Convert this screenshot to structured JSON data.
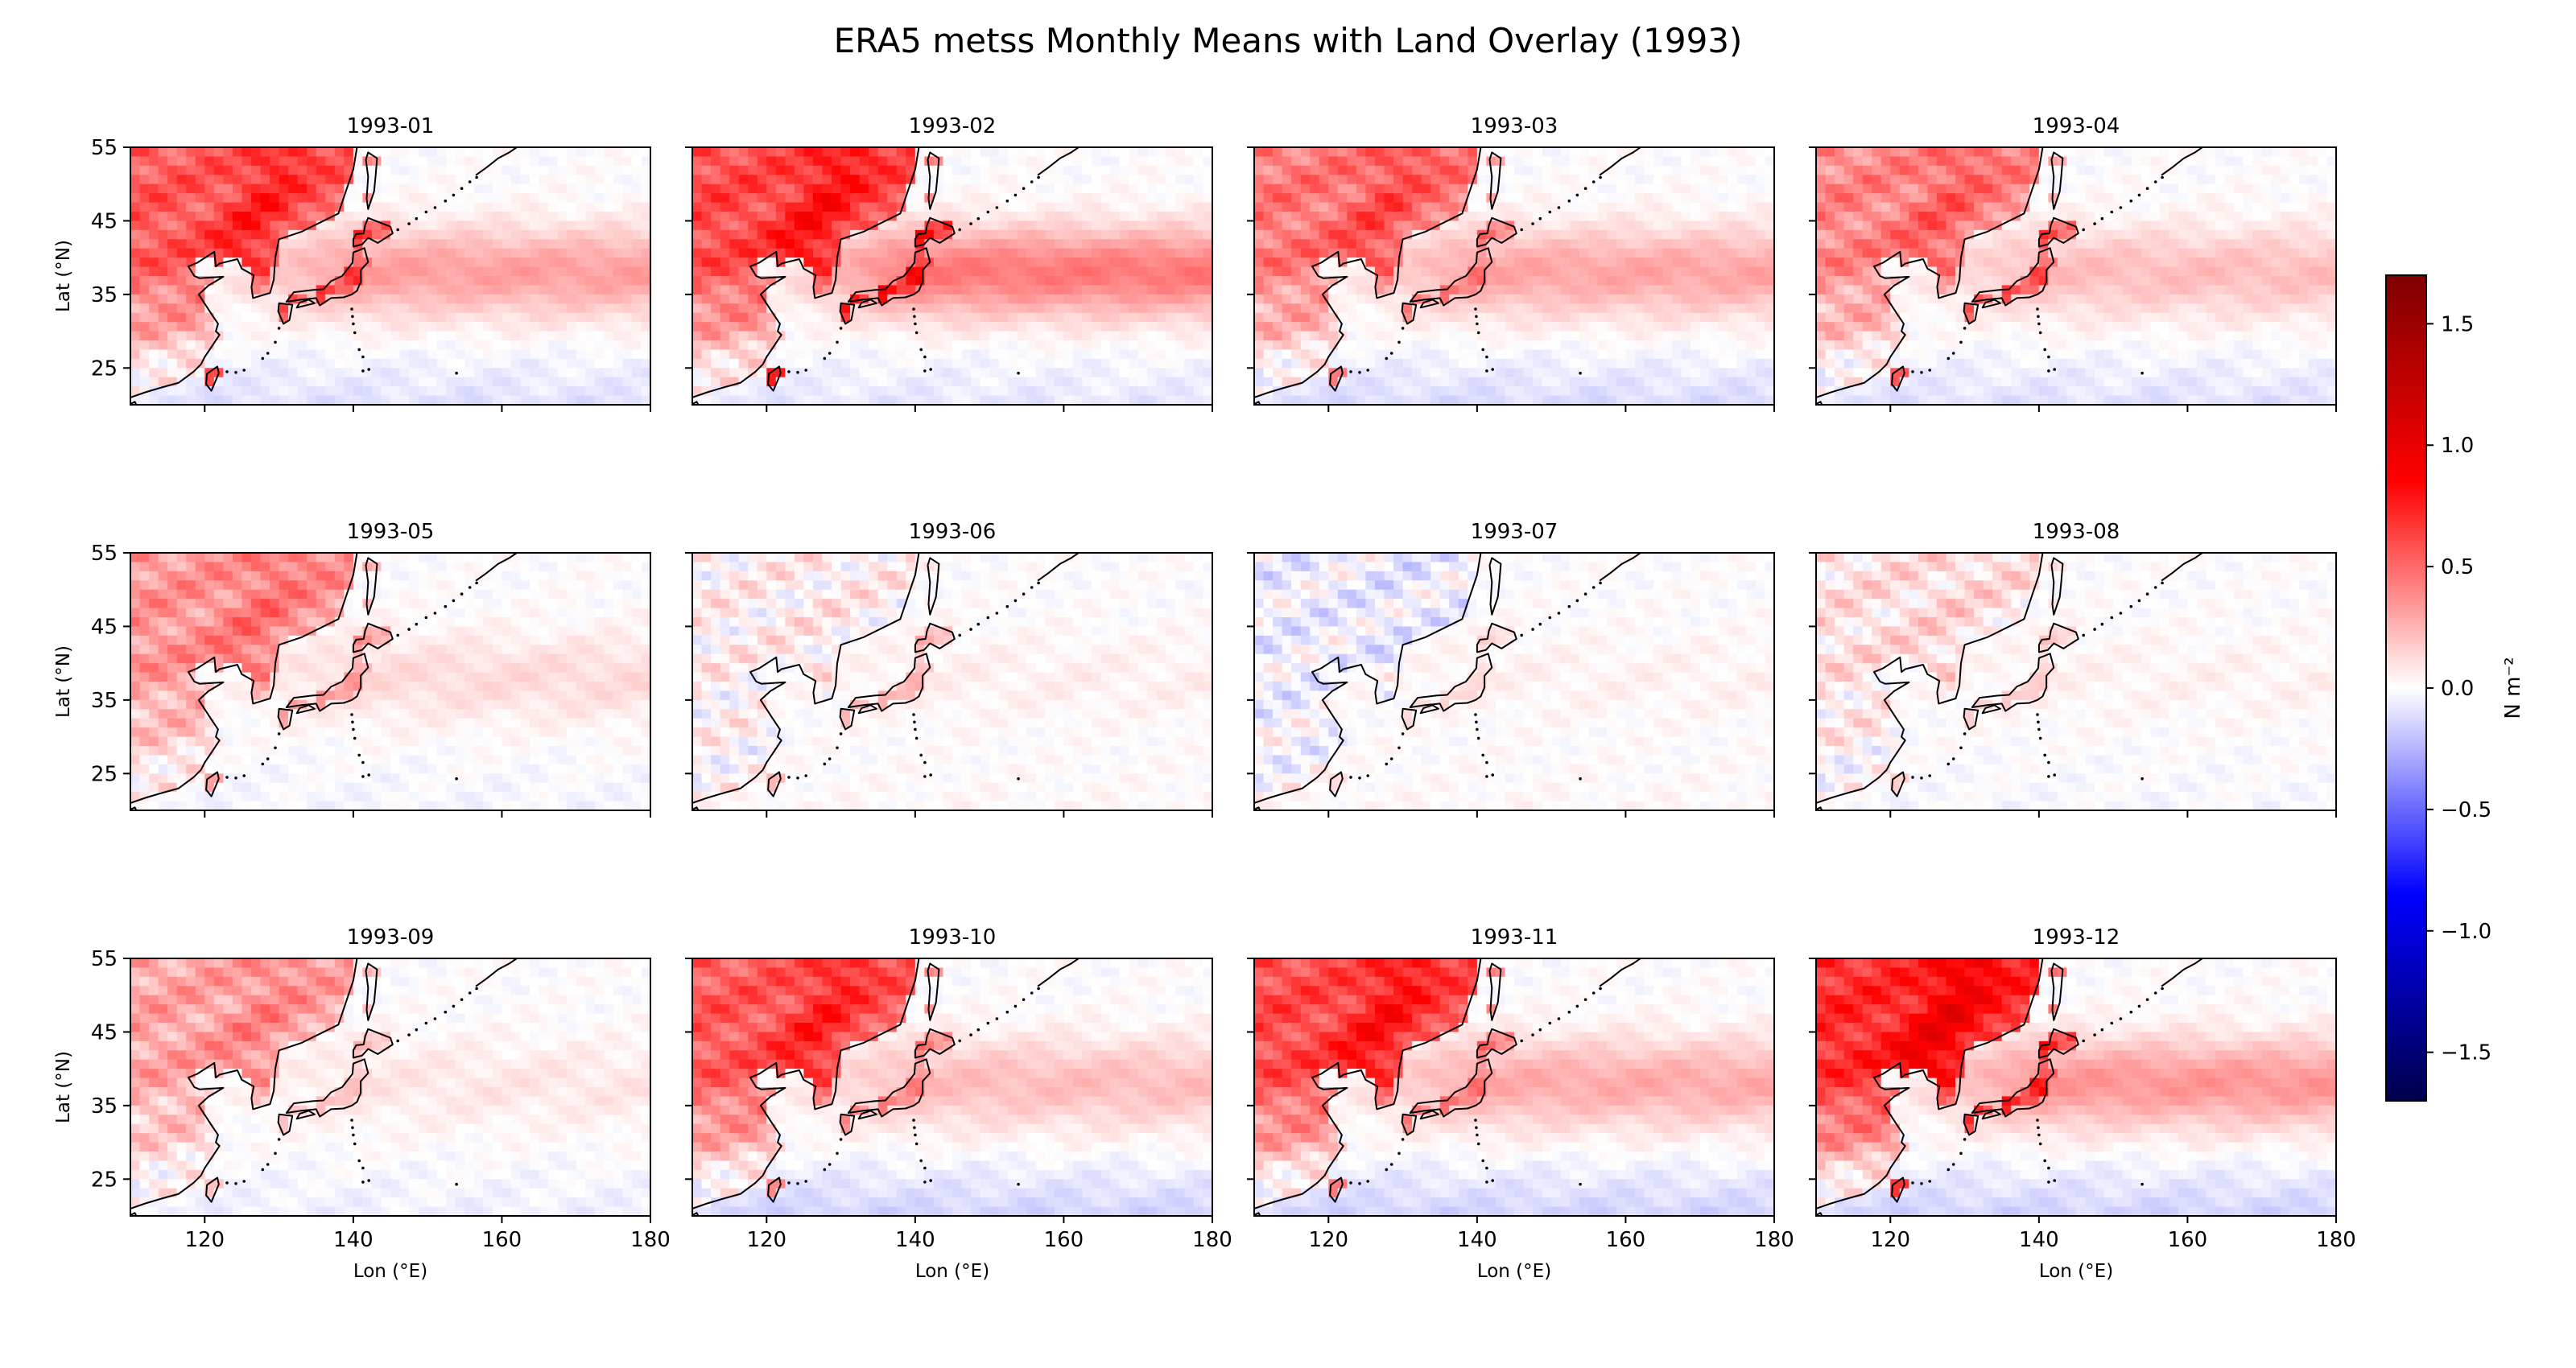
{
  "figure": {
    "title": "ERA5 metss Monthly Means with Land Overlay (1993)"
  },
  "colorbar": {
    "label": "N m⁻²",
    "range": [
      -1.7,
      1.7
    ],
    "ticks": [
      1.5,
      1.0,
      0.5,
      0.0,
      -0.5,
      -1.0,
      -1.5
    ],
    "tick_labels": [
      "1.5",
      "1.0",
      "0.5",
      "0.0",
      "−0.5",
      "−1.0",
      "−1.5"
    ],
    "colormap": "seismic",
    "colors": {
      "min": "#00004c",
      "neg": "#0000ff",
      "zero": "#ffffff",
      "pos": "#ff0000",
      "max": "#7f0000"
    }
  },
  "chart_data": {
    "type": "heatmap",
    "xlabel": "Lon (°E)",
    "ylabel": "Lat (°N)",
    "xlim": [
      110,
      180
    ],
    "ylim": [
      20,
      55
    ],
    "xticks": [
      120,
      140,
      160,
      180
    ],
    "yticks": [
      25,
      35,
      45,
      55
    ],
    "panels": [
      {
        "title": "1993-01",
        "land": 0.55,
        "kuroshio": 0.32,
        "south": -0.1,
        "japan": 0.75
      },
      {
        "title": "1993-02",
        "land": 0.6,
        "kuroshio": 0.45,
        "south": -0.08,
        "japan": 0.95
      },
      {
        "title": "1993-03",
        "land": 0.45,
        "kuroshio": 0.3,
        "south": -0.12,
        "japan": 0.55
      },
      {
        "title": "1993-04",
        "land": 0.4,
        "kuroshio": 0.22,
        "south": -0.1,
        "japan": 0.7
      },
      {
        "title": "1993-05",
        "land": 0.35,
        "kuroshio": 0.12,
        "south": -0.03,
        "japan": 0.4
      },
      {
        "title": "1993-06",
        "land": 0.05,
        "kuroshio": 0.05,
        "south": 0.02,
        "japan": 0.3
      },
      {
        "title": "1993-07",
        "land": -0.05,
        "kuroshio": 0.04,
        "south": 0.02,
        "japan": 0.15
      },
      {
        "title": "1993-08",
        "land": 0.1,
        "kuroshio": 0.04,
        "south": -0.02,
        "japan": 0.2
      },
      {
        "title": "1993-09",
        "land": 0.3,
        "kuroshio": 0.08,
        "south": -0.05,
        "japan": 0.25
      },
      {
        "title": "1993-10",
        "land": 0.55,
        "kuroshio": 0.22,
        "south": -0.15,
        "japan": 0.5
      },
      {
        "title": "1993-11",
        "land": 0.6,
        "kuroshio": 0.28,
        "south": -0.15,
        "japan": 0.55
      },
      {
        "title": "1993-12",
        "land": 0.7,
        "kuroshio": 0.35,
        "south": -0.15,
        "japan": 0.85
      }
    ]
  }
}
